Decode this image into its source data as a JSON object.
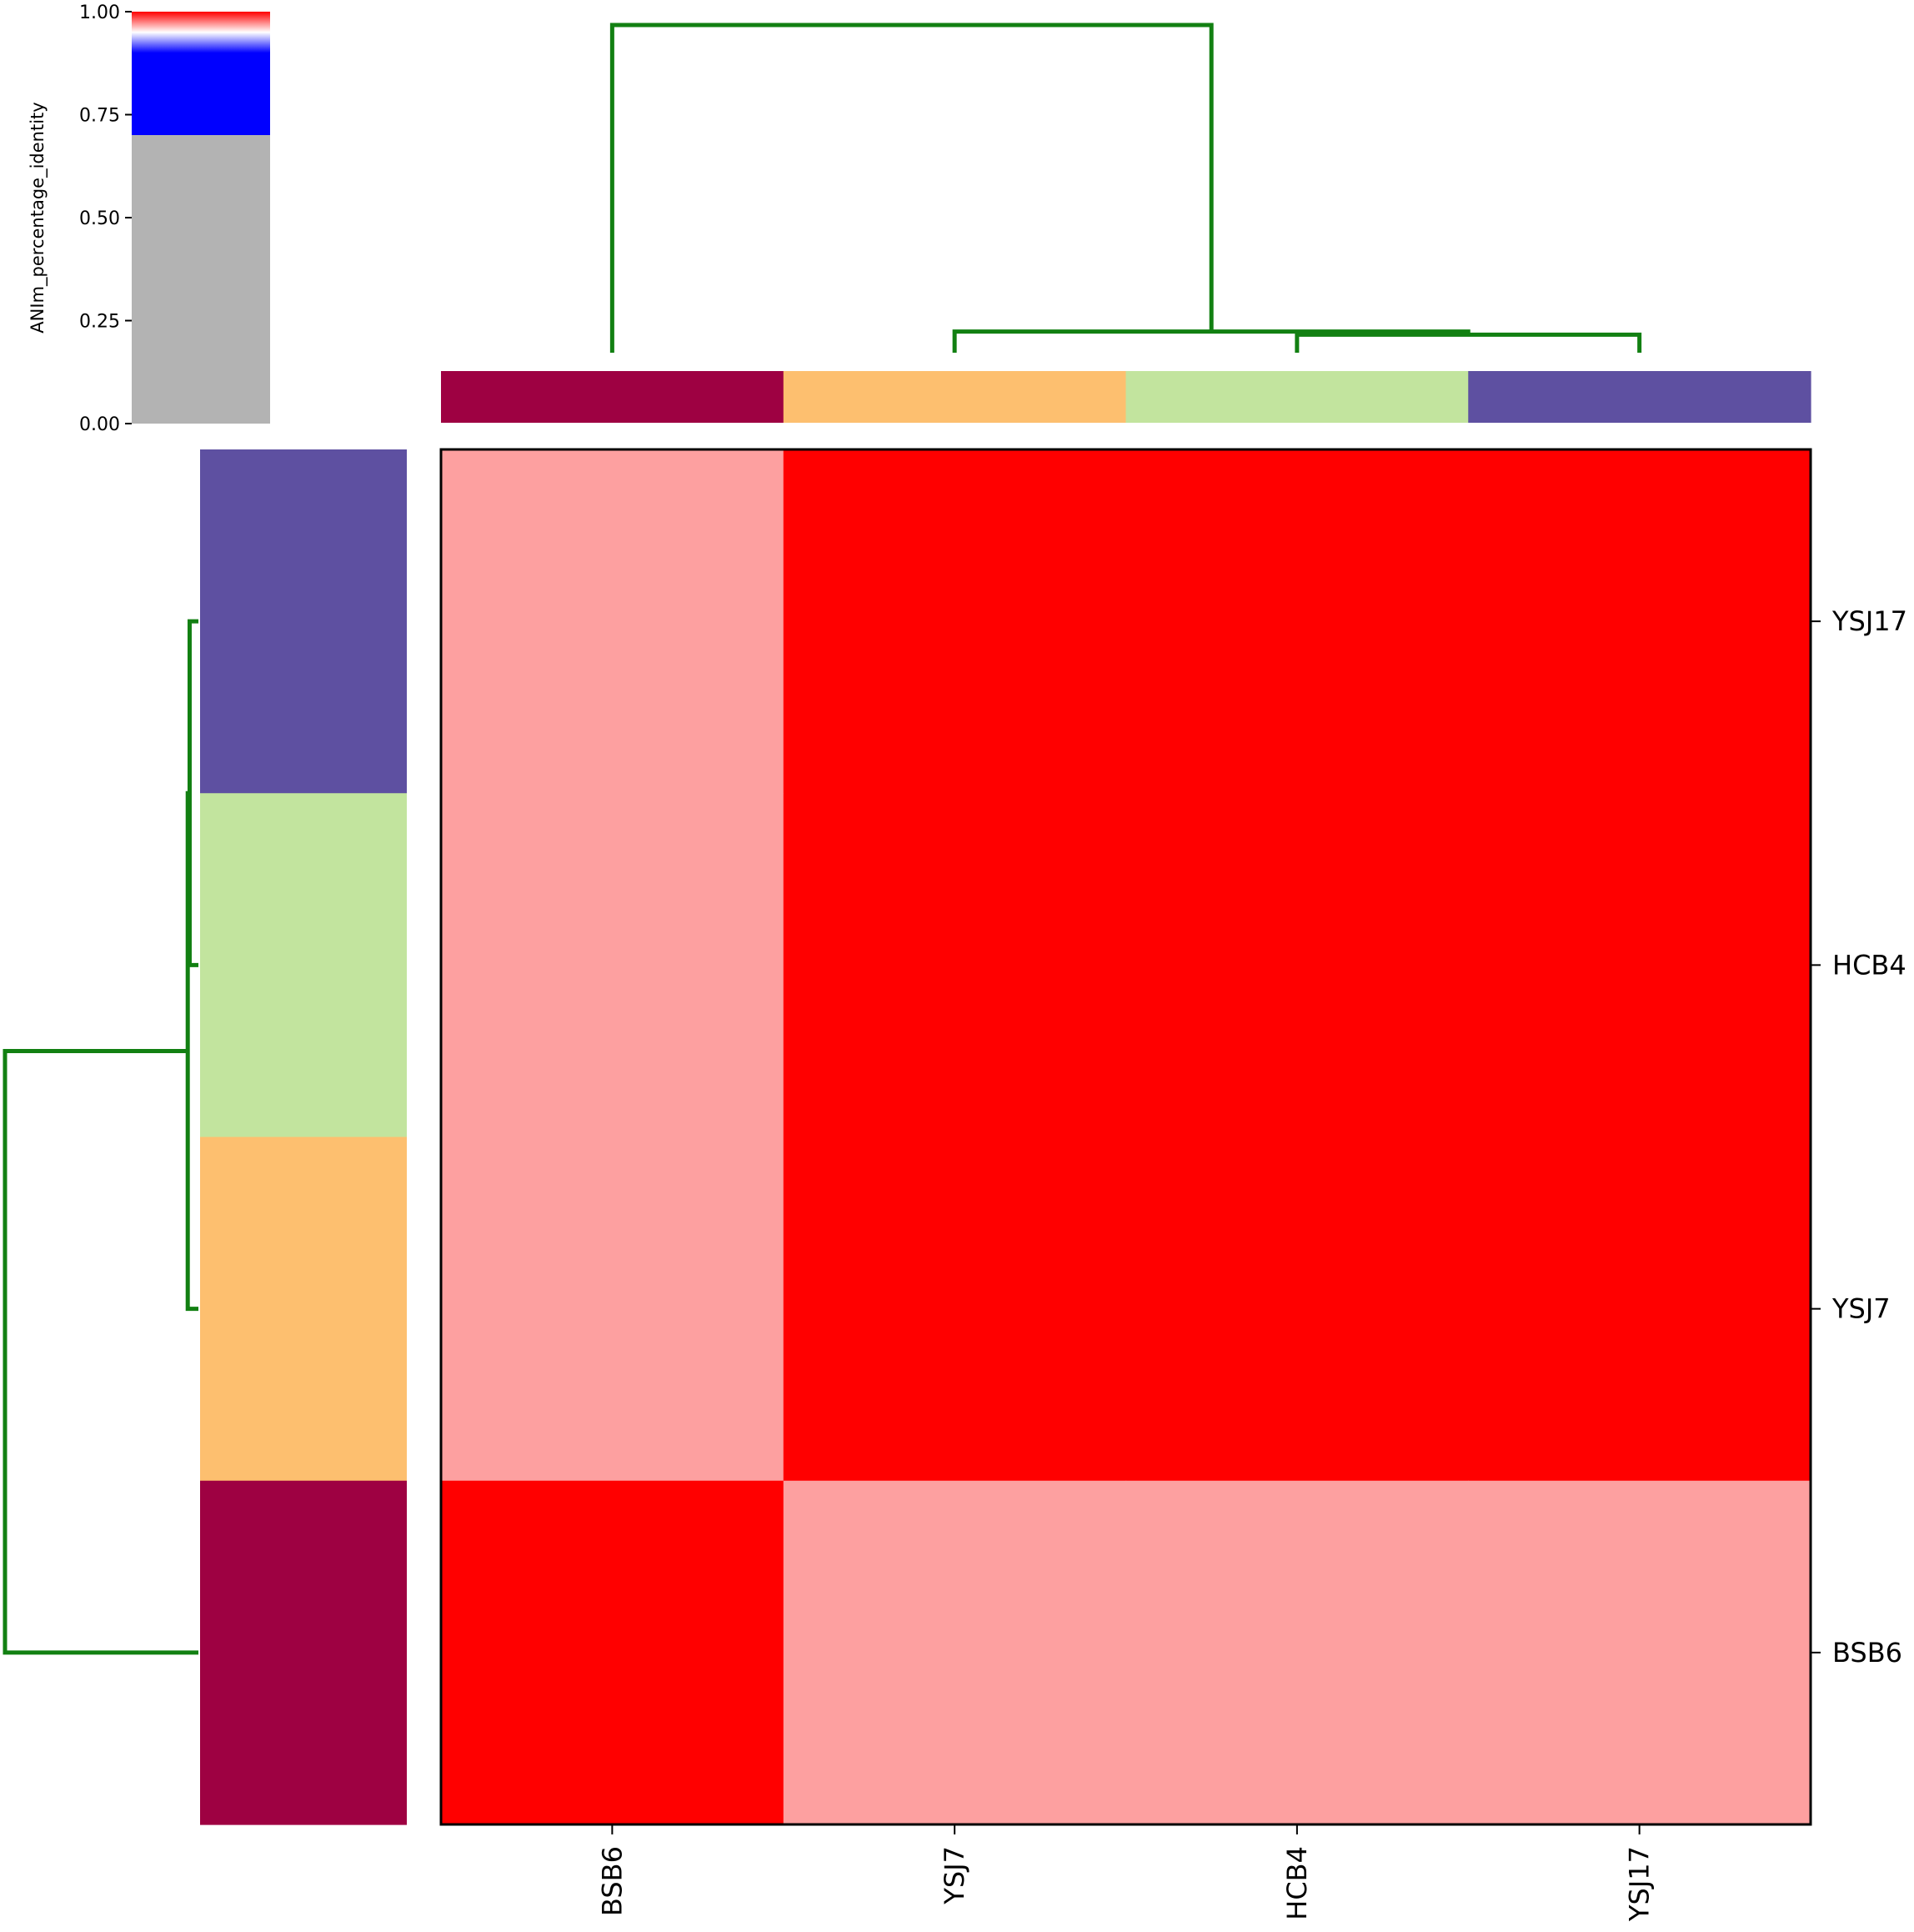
{
  "chart_data": {
    "type": "heatmap",
    "rows": [
      "YSJ17",
      "HCB4",
      "YSJ7",
      "BSB6"
    ],
    "columns": [
      "BSB6",
      "YSJ7",
      "HCB4",
      "YSJ17"
    ],
    "values": [
      [
        0.85,
        1.0,
        1.0,
        1.0
      ],
      [
        0.85,
        1.0,
        1.0,
        1.0
      ],
      [
        0.85,
        1.0,
        1.0,
        1.0
      ],
      [
        1.0,
        0.85,
        0.85,
        0.85
      ]
    ],
    "colorbar": {
      "label": "ANIm_percentage_identity",
      "ticks": [
        "0.00",
        "0.25",
        "0.50",
        "0.75",
        "1.00"
      ],
      "range": [
        0,
        1
      ],
      "stops": [
        {
          "value": 0.0,
          "color": "#b3b3b3"
        },
        {
          "value": 0.7,
          "color": "#b3b3b3"
        },
        {
          "value": 0.7,
          "color": "#0000ff"
        },
        {
          "value": 0.9,
          "color": "#0000ff"
        },
        {
          "value": 0.95,
          "color": "#ffffff"
        },
        {
          "value": 1.0,
          "color": "#ff0000"
        }
      ]
    },
    "class_colors": {
      "BSB6": "#9e0142",
      "YSJ7": "#fdbf6f",
      "HCB4": "#c2e49e",
      "YSJ17": "#5e50a1"
    },
    "dendrogram": {
      "link_color": "#128012",
      "leaves": [
        "BSB6",
        "YSJ7",
        "HCB4",
        "YSJ17"
      ],
      "merges": [
        {
          "left": "HCB4",
          "right": "YSJ17",
          "height": 0.02
        },
        {
          "left": "YSJ7",
          "right": "HCB4+YSJ17",
          "height": 0.03
        },
        {
          "left": "BSB6",
          "right": "YSJ7+HCB4+YSJ17",
          "height": 1.0
        }
      ]
    },
    "colors": {
      "high": "#ff0000",
      "mid": "#fda0a0"
    }
  }
}
